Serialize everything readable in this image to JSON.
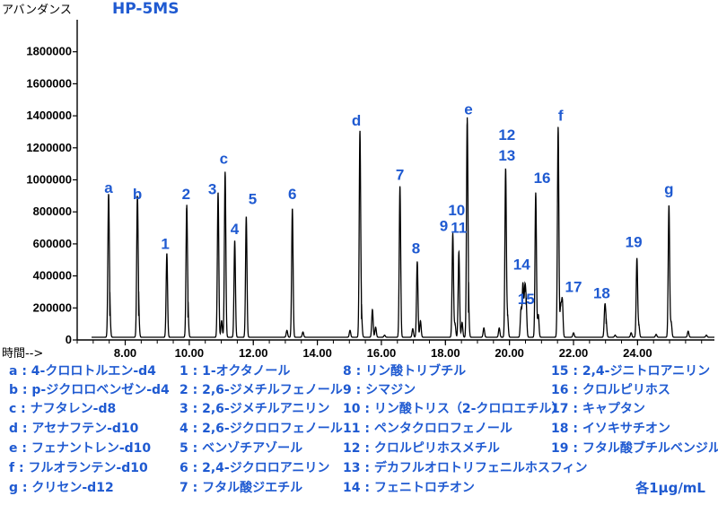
{
  "chart_data": {
    "type": "line",
    "title": "HP-5MS",
    "ylabel": "アバンダンス",
    "xlabel": "時間-->",
    "xlim": [
      6.5,
      26.4
    ],
    "ylim": [
      0,
      2000000
    ],
    "xticks": [
      8,
      10,
      12,
      14,
      16,
      18,
      20,
      22,
      24
    ],
    "xtick_labels": [
      "8.00",
      "10.00",
      "12.00",
      "14.00",
      "16.00",
      "18.00",
      "20.00",
      "22.00",
      "24.00"
    ],
    "yticks": [
      0,
      200000,
      400000,
      600000,
      800000,
      1000000,
      1200000,
      1400000,
      1600000,
      1800000
    ],
    "ytick_labels": [
      "0",
      "200000",
      "400000",
      "600000",
      "800000",
      "1000000",
      "1200000",
      "1400000",
      "1600000",
      "1800000"
    ],
    "baseline": 17000,
    "peaks": [
      {
        "x": 7.48,
        "y": 890000,
        "label": "a"
      },
      {
        "x": 8.38,
        "y": 880000,
        "label": "b"
      },
      {
        "x": 9.3,
        "y": 540000,
        "label": "1"
      },
      {
        "x": 9.92,
        "y": 820000,
        "label": "2"
      },
      {
        "x": 10.9,
        "y": 920000,
        "label": "3"
      },
      {
        "x": 11.12,
        "y": 1050000,
        "label": "c"
      },
      {
        "x": 11.42,
        "y": 620000,
        "label": "4"
      },
      {
        "x": 11.78,
        "y": 770000,
        "label": "5"
      },
      {
        "x": 13.22,
        "y": 820000,
        "label": "6"
      },
      {
        "x": 15.33,
        "y": 1300000,
        "label": "d"
      },
      {
        "x": 16.58,
        "y": 960000,
        "label": "7"
      },
      {
        "x": 17.12,
        "y": 490000,
        "label": "8"
      },
      {
        "x": 18.23,
        "y": 665000,
        "label": "9"
      },
      {
        "x": 18.42,
        "y": 550000,
        "label": "11"
      },
      {
        "x": 18.68,
        "y": 1360000,
        "label": "e"
      },
      {
        "x": 19.88,
        "y": 1070000,
        "label": "12"
      },
      {
        "x": 20.42,
        "y": 350000,
        "label": "14"
      },
      {
        "x": 20.52,
        "y": 220000,
        "label": "15"
      },
      {
        "x": 20.82,
        "y": 920000,
        "label": "16"
      },
      {
        "x": 21.52,
        "y": 1330000,
        "label": "f"
      },
      {
        "x": 21.65,
        "y": 250000,
        "label": "17"
      },
      {
        "x": 22.98,
        "y": 210000,
        "label": "18"
      },
      {
        "x": 23.98,
        "y": 510000,
        "label": "19"
      },
      {
        "x": 24.98,
        "y": 840000,
        "label": "g"
      }
    ],
    "minor_peaks": [
      {
        "x": 7.52,
        "y": 150000
      },
      {
        "x": 8.42,
        "y": 150000
      },
      {
        "x": 9.96,
        "y": 140000
      },
      {
        "x": 11.01,
        "y": 120000
      },
      {
        "x": 13.05,
        "y": 60000
      },
      {
        "x": 13.55,
        "y": 50000
      },
      {
        "x": 15.02,
        "y": 60000
      },
      {
        "x": 15.38,
        "y": 130000
      },
      {
        "x": 15.72,
        "y": 190000
      },
      {
        "x": 15.82,
        "y": 80000
      },
      {
        "x": 16.1,
        "y": 30000
      },
      {
        "x": 16.98,
        "y": 70000
      },
      {
        "x": 17.22,
        "y": 120000
      },
      {
        "x": 18.3,
        "y": 100000
      },
      {
        "x": 18.52,
        "y": 110000
      },
      {
        "x": 18.72,
        "y": 170000
      },
      {
        "x": 19.2,
        "y": 75000
      },
      {
        "x": 19.68,
        "y": 75000
      },
      {
        "x": 19.94,
        "y": 150000
      },
      {
        "x": 20.36,
        "y": 190000
      },
      {
        "x": 20.48,
        "y": 300000
      },
      {
        "x": 20.9,
        "y": 160000
      },
      {
        "x": 21.6,
        "y": 210000
      },
      {
        "x": 22.0,
        "y": 45000
      },
      {
        "x": 23.02,
        "y": 100000
      },
      {
        "x": 23.3,
        "y": 30000
      },
      {
        "x": 23.8,
        "y": 45000
      },
      {
        "x": 24.04,
        "y": 90000
      },
      {
        "x": 24.58,
        "y": 35000
      },
      {
        "x": 25.05,
        "y": 110000
      },
      {
        "x": 25.58,
        "y": 55000
      },
      {
        "x": 26.15,
        "y": 30000
      }
    ],
    "annotations": [
      {
        "text": "a",
        "x": 7.48,
        "y": 920000
      },
      {
        "text": "b",
        "x": 8.38,
        "y": 880000
      },
      {
        "text": "1",
        "x": 9.25,
        "y": 570000
      },
      {
        "text": "2",
        "x": 9.9,
        "y": 880000
      },
      {
        "text": "3",
        "x": 10.72,
        "y": 910000
      },
      {
        "text": "c",
        "x": 11.08,
        "y": 1100000
      },
      {
        "text": "4",
        "x": 11.42,
        "y": 660000
      },
      {
        "text": "5",
        "x": 11.98,
        "y": 850000
      },
      {
        "text": "6",
        "x": 13.22,
        "y": 880000
      },
      {
        "text": "d",
        "x": 15.22,
        "y": 1340000
      },
      {
        "text": "7",
        "x": 16.58,
        "y": 1000000
      },
      {
        "text": "8",
        "x": 17.08,
        "y": 540000
      },
      {
        "text": "9",
        "x": 17.95,
        "y": 680000
      },
      {
        "text": "10",
        "x": 18.35,
        "y": 780000
      },
      {
        "text": "11",
        "x": 18.42,
        "y": 670000
      },
      {
        "text": "e",
        "x": 18.72,
        "y": 1410000
      },
      {
        "text": "12",
        "x": 19.92,
        "y": 1250000
      },
      {
        "text": "13",
        "x": 19.92,
        "y": 1120000
      },
      {
        "text": "14",
        "x": 20.38,
        "y": 440000
      },
      {
        "text": "15",
        "x": 20.52,
        "y": 225000
      },
      {
        "text": "16",
        "x": 21.02,
        "y": 980000
      },
      {
        "text": "f",
        "x": 21.6,
        "y": 1370000
      },
      {
        "text": "17",
        "x": 22.0,
        "y": 300000
      },
      {
        "text": "18",
        "x": 22.88,
        "y": 260000
      },
      {
        "text": "19",
        "x": 23.88,
        "y": 580000
      },
      {
        "text": "g",
        "x": 24.98,
        "y": 910000
      }
    ]
  },
  "legend": {
    "col1": [
      "a : 4-クロロトルエン-d4",
      "b : p-ジクロロベンゼン-d4",
      "c : ナフタレン-d8",
      "d : アセナフテン-d10",
      "e : フェナントレン-d10",
      "f : フルオランテン-d10",
      "g : クリセン-d12"
    ],
    "col2": [
      "1 : 1-オクタノール",
      "2 : 2,6-ジメチルフェノール",
      "3 : 2,6-ジメチルアニリン",
      "4 : 2,6-ジクロロフェノール",
      "5 : ベンゾチアゾール",
      "6 : 2,4-ジクロロアニリン",
      "7 : フタル酸ジエチル"
    ],
    "col3": [
      "8 : リン酸トリブチル",
      "9 : シマジン",
      "10 : リン酸トリス（2-クロロエチル）",
      "11 : ペンタクロロフェノール",
      "12 : クロルピリホスメチル",
      "13 : デカフルオロトリフェニルホスフィン",
      "14 : フェニトロチオン"
    ],
    "col4": [
      "15 : 2,4-ジニトロアニリン",
      "16 : クロルピリホス",
      "17 : キャプタン",
      "18 : イソキサチオン",
      "19 : フタル酸ブチルベンジル"
    ]
  },
  "note": "各1μg/mL",
  "colors": {
    "annotation": "#1f5ad1",
    "trace": "#000000"
  }
}
